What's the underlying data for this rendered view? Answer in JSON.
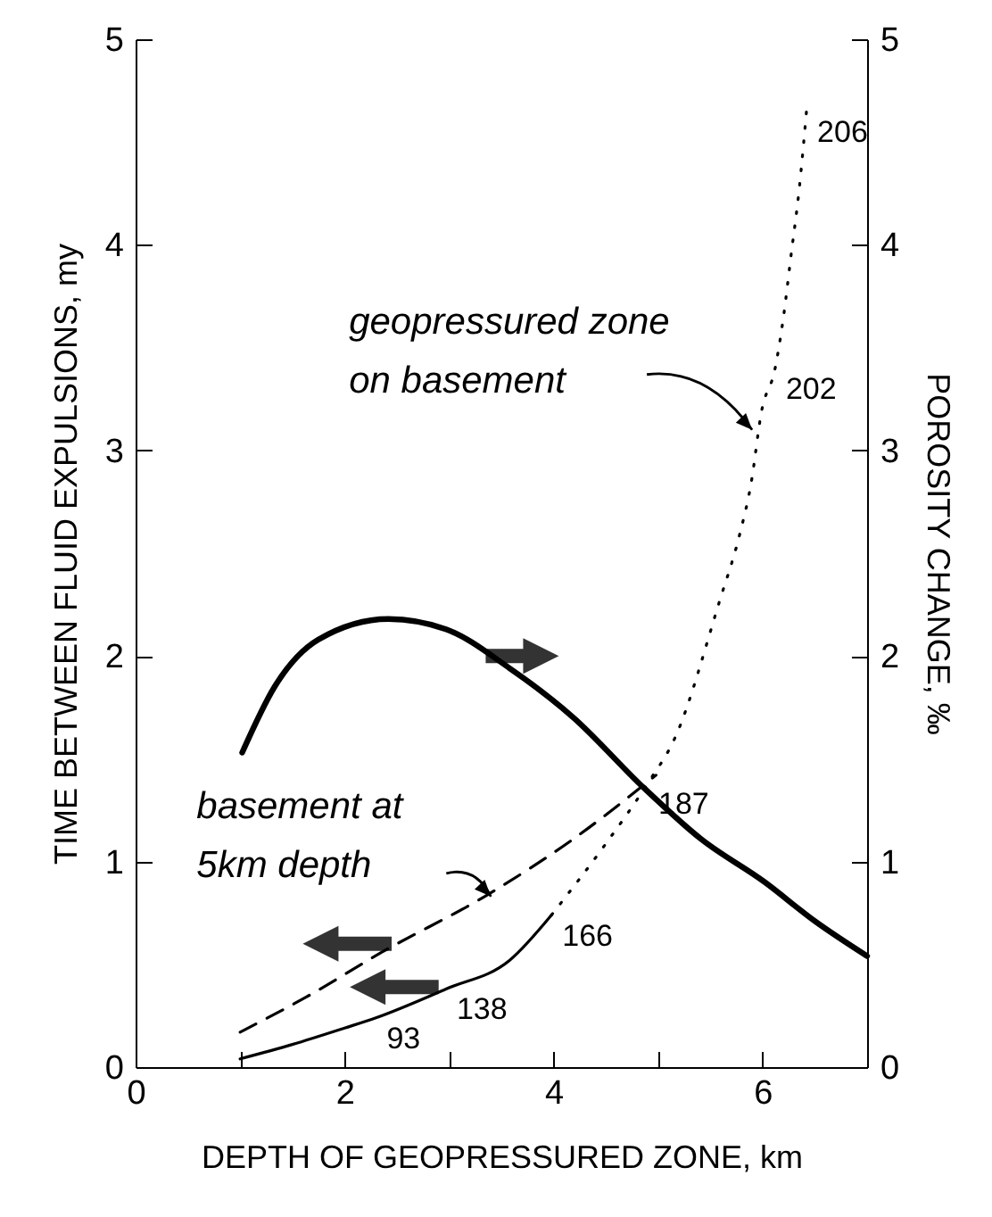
{
  "chart_data": {
    "type": "line",
    "xlabel": "DEPTH OF GEOPRESSURED  ZONE, km",
    "ylabel": "TIME BETWEEN FLUID EXPULSIONS, my",
    "y2label": "POROSITY  CHANGE, ‰",
    "xlim": [
      0,
      7
    ],
    "xticks": [
      0,
      {
        "value": 1,
        "label": null
      },
      2,
      {
        "value": 3,
        "label": null
      },
      4,
      {
        "value": 5,
        "label": null
      },
      6,
      {
        "value": 7,
        "label": null
      }
    ],
    "ylim": [
      0,
      5
    ],
    "yticks": [
      0,
      1,
      2,
      3,
      4,
      5
    ],
    "y2lim": [
      0,
      5
    ],
    "y2ticks": [
      0,
      1,
      2,
      3,
      4,
      5
    ],
    "grid": false,
    "marker": "none",
    "series": [
      {
        "color": "#000000",
        "line_style": "solid",
        "axis": "y2",
        "x": [
          1.02,
          1.33,
          1.75,
          2.42,
          2.97,
          3.58,
          4.19,
          4.86,
          5.41,
          6.02,
          6.5,
          7.0
        ],
        "values": [
          1.53,
          1.85,
          2.08,
          2.18,
          2.13,
          1.94,
          1.7,
          1.36,
          1.11,
          0.9,
          0.71,
          0.54
        ]
      },
      {
        "color": "#000000",
        "line_style": "dashed",
        "x": [
          1.0,
          1.63,
          2.36,
          3.34,
          4.19,
          4.98
        ],
        "values": [
          0.17,
          0.34,
          0.56,
          0.83,
          1.11,
          1.42
        ]
      },
      {
        "color": "#000000",
        "line_style": "solid",
        "x": [
          1.0,
          1.5,
          2.0,
          2.3,
          2.97,
          3.58,
          3.98
        ],
        "values": [
          0.04,
          0.11,
          0.19,
          0.24,
          0.38,
          0.52,
          0.74
        ]
      },
      {
        "color": "#000000",
        "line_style": "dotted",
        "x": [
          3.98,
          4.49,
          4.9,
          5.16,
          5.59,
          5.78,
          5.89,
          5.99,
          6.12,
          6.2,
          6.27,
          6.35,
          6.42
        ],
        "values": [
          0.74,
          1.08,
          1.38,
          1.6,
          2.27,
          2.59,
          2.84,
          3.19,
          3.4,
          3.65,
          3.94,
          4.27,
          4.65
        ]
      }
    ],
    "annotations": [
      {
        "text": "geopressured zone\non basement",
        "x": 5.9,
        "y": 3.1
      },
      {
        "text": "basement at\n5km depth",
        "x": 3.4,
        "y": 0.83
      },
      {
        "text": "93",
        "x": 2.3,
        "y": 0.24
      },
      {
        "text": "138",
        "x": 2.97,
        "y": 0.38
      },
      {
        "text": "166",
        "x": 3.98,
        "y": 0.74
      },
      {
        "text": "187",
        "x": 4.9,
        "y": 1.38
      },
      {
        "text": "202",
        "x": 6.12,
        "y": 3.4
      },
      {
        "text": "206",
        "x": 6.42,
        "y": 4.65
      }
    ]
  }
}
